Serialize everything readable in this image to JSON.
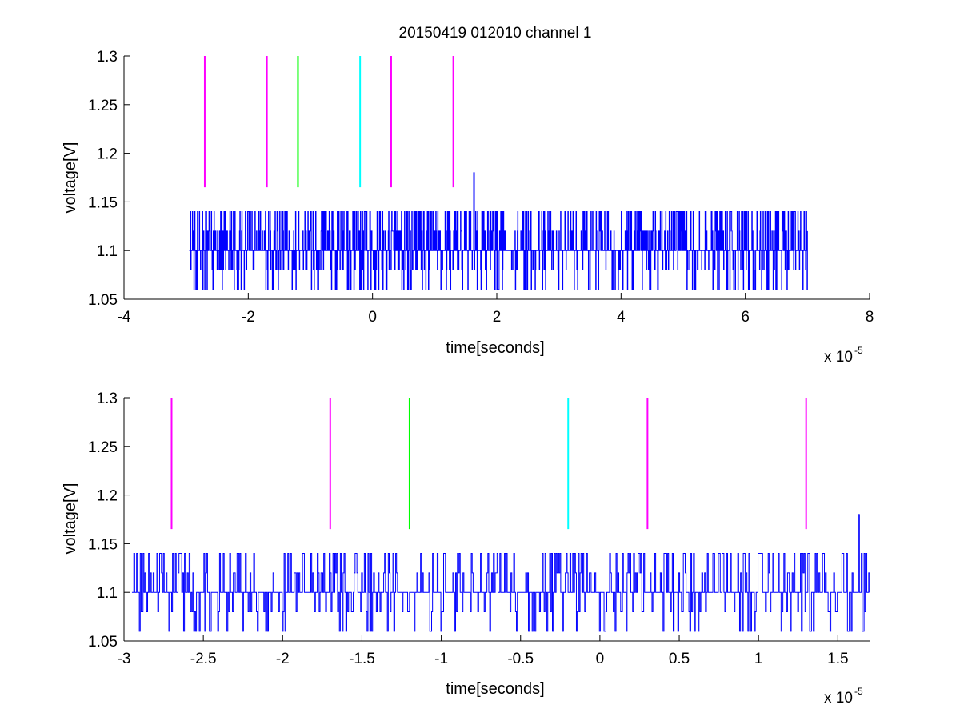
{
  "figure": {
    "title": "20150419 012010 channel 1"
  },
  "chart_data": [
    {
      "type": "line",
      "xlabel": "time[seconds]",
      "ylabel": "voltage[V]",
      "x_exponent_label": "x 10",
      "x_exponent": "-5",
      "xlim": [
        -4,
        8
      ],
      "ylim": [
        1.05,
        1.3
      ],
      "x_tick_values": [
        -4,
        -2,
        0,
        2,
        4,
        6,
        8
      ],
      "x_tick_labels": [
        "-4",
        "-2",
        "0",
        "2",
        "4",
        "6",
        "8"
      ],
      "y_tick_values": [
        1.05,
        1.1,
        1.15,
        1.2,
        1.25,
        1.3
      ],
      "y_tick_labels": [
        "1.05",
        "1.1",
        "1.15",
        "1.2",
        "1.25",
        "1.3"
      ],
      "grid": false,
      "markers": [
        {
          "x": -2.7,
          "y_range": [
            1.165,
            1.3
          ],
          "color": "#ff00ff"
        },
        {
          "x": -1.7,
          "y_range": [
            1.165,
            1.3
          ],
          "color": "#ff00ff"
        },
        {
          "x": -1.2,
          "y_range": [
            1.165,
            1.3
          ],
          "color": "#00ff00"
        },
        {
          "x": -0.2,
          "y_range": [
            1.165,
            1.3
          ],
          "color": "#00ffff"
        },
        {
          "x": 0.3,
          "y_range": [
            1.165,
            1.3
          ],
          "color": "#ff00ff"
        },
        {
          "x": 1.3,
          "y_range": [
            1.165,
            1.3
          ],
          "color": "#ff00ff"
        }
      ],
      "series": [
        {
          "color": "#0000ff",
          "x_range": [
            -2.95,
            7.0
          ],
          "levels": [
            1.06,
            1.08,
            1.1,
            1.12,
            1.14
          ],
          "baseline": 1.1,
          "peak": {
            "x": 1.63,
            "y": 1.18
          }
        }
      ]
    },
    {
      "type": "line",
      "xlabel": "time[seconds]",
      "ylabel": "voltage[V]",
      "x_exponent_label": "x 10",
      "x_exponent": "-5",
      "xlim": [
        -3.0,
        1.7
      ],
      "ylim": [
        1.05,
        1.3
      ],
      "x_tick_values": [
        -3,
        -2.5,
        -2,
        -1.5,
        -1,
        -0.5,
        0,
        0.5,
        1,
        1.5
      ],
      "x_tick_labels": [
        "-3",
        "-2.5",
        "-2",
        "-1.5",
        "-1",
        "-0.5",
        "0",
        "0.5",
        "1",
        "1.5"
      ],
      "y_tick_values": [
        1.05,
        1.1,
        1.15,
        1.2,
        1.25,
        1.3
      ],
      "y_tick_labels": [
        "1.05",
        "1.1",
        "1.15",
        "1.2",
        "1.25",
        "1.3"
      ],
      "grid": false,
      "markers": [
        {
          "x": -2.7,
          "y_range": [
            1.165,
            1.3
          ],
          "color": "#ff00ff"
        },
        {
          "x": -1.7,
          "y_range": [
            1.165,
            1.3
          ],
          "color": "#ff00ff"
        },
        {
          "x": -1.2,
          "y_range": [
            1.165,
            1.3
          ],
          "color": "#00ff00"
        },
        {
          "x": -0.2,
          "y_range": [
            1.165,
            1.3
          ],
          "color": "#00ffff"
        },
        {
          "x": 0.3,
          "y_range": [
            1.165,
            1.3
          ],
          "color": "#ff00ff"
        },
        {
          "x": 1.3,
          "y_range": [
            1.165,
            1.3
          ],
          "color": "#ff00ff"
        }
      ],
      "series": [
        {
          "color": "#0000ff",
          "x_range": [
            -2.95,
            1.7
          ],
          "levels": [
            1.06,
            1.08,
            1.1,
            1.12,
            1.14
          ],
          "baseline": 1.1,
          "peak": {
            "x": 1.63,
            "y": 1.18
          }
        }
      ]
    }
  ]
}
